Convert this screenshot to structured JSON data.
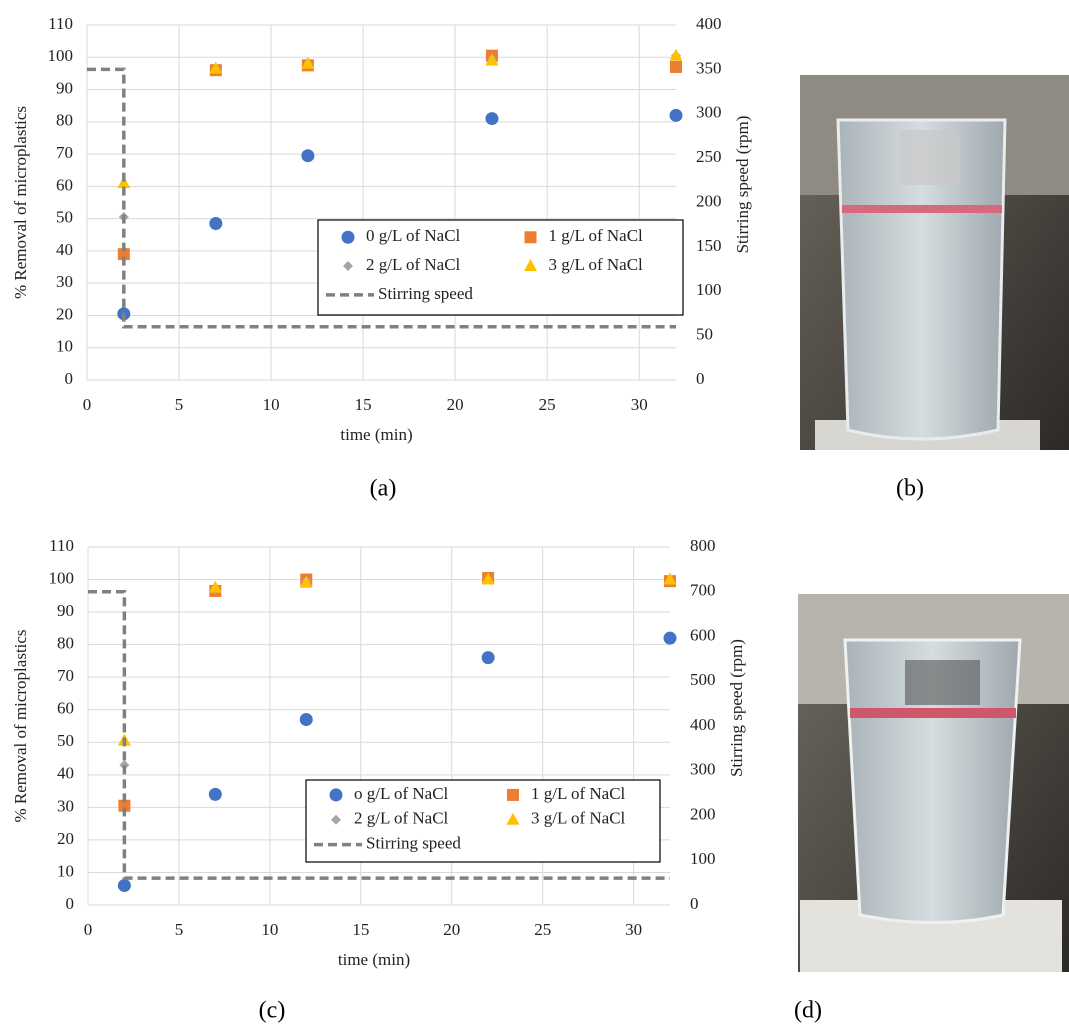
{
  "captions": [
    "(a)",
    "(b)",
    "(c)",
    "(d)"
  ],
  "chart_data": [
    {
      "type": "scatter",
      "xlabel": "time (min)",
      "ylabel": "% Removal of microplastics",
      "y2label": "Stirring speed (rpm)",
      "xlim": [
        0,
        32
      ],
      "xticks": [
        0,
        5,
        10,
        15,
        20,
        25,
        30
      ],
      "ylim": [
        0,
        110
      ],
      "yticks": [
        0,
        10,
        20,
        30,
        40,
        50,
        60,
        70,
        80,
        90,
        100,
        110
      ],
      "y2lim": [
        0,
        400
      ],
      "y2ticks": [
        0,
        50,
        100,
        150,
        200,
        250,
        300,
        350,
        400
      ],
      "grid": true,
      "series": [
        {
          "name": "0 g/L of NaCl",
          "color": "#4472c4",
          "marker": "circle",
          "x": [
            2,
            7,
            12,
            22,
            32
          ],
          "values": [
            20.5,
            48.5,
            69.5,
            81,
            82
          ]
        },
        {
          "name": "1 g/L of NaCl",
          "color": "#ed7d31",
          "marker": "square",
          "x": [
            2,
            7,
            12,
            22,
            32
          ],
          "values": [
            39,
            96,
            97.5,
            100.5,
            97
          ]
        },
        {
          "name": "2 g/L of NaCl",
          "color": "#a5a5a5",
          "marker": "diamond",
          "x": [
            2,
            7,
            12,
            22,
            32
          ],
          "values": [
            50.5,
            96.5,
            98,
            99.5,
            100.5
          ]
        },
        {
          "name": "3 g/L of NaCl",
          "color": "#ffc000",
          "marker": "triangle",
          "x": [
            2,
            7,
            12,
            22,
            32
          ],
          "values": [
            61,
            96.5,
            98,
            99,
            100.5
          ]
        },
        {
          "name": "Stirring speed",
          "color": "#808080",
          "marker": "dashed-line",
          "axis": "y2",
          "x": [
            0,
            2,
            2,
            32
          ],
          "values": [
            350,
            350,
            60,
            60
          ]
        }
      ]
    },
    {
      "type": "scatter",
      "xlabel": "time (min)",
      "ylabel": "% Removal of microplastics",
      "y2label": "Stirring speed (rpm)",
      "xlim": [
        0,
        32
      ],
      "xticks": [
        0,
        5,
        10,
        15,
        20,
        25,
        30
      ],
      "ylim": [
        0,
        110
      ],
      "yticks": [
        0,
        10,
        20,
        30,
        40,
        50,
        60,
        70,
        80,
        90,
        100,
        110
      ],
      "y2lim": [
        0,
        800
      ],
      "y2ticks": [
        0,
        100,
        200,
        300,
        400,
        500,
        600,
        700,
        800
      ],
      "grid": true,
      "series": [
        {
          "name": "o g/L of NaCl",
          "color": "#4472c4",
          "marker": "circle",
          "x": [
            2,
            7,
            12,
            22,
            32
          ],
          "values": [
            6,
            34,
            57,
            76,
            82
          ]
        },
        {
          "name": "1 g/L of NaCl",
          "color": "#ed7d31",
          "marker": "square",
          "x": [
            2,
            7,
            12,
            22,
            32
          ],
          "values": [
            30.5,
            96.5,
            100,
            100.5,
            99.5
          ]
        },
        {
          "name": "2 g/L of NaCl",
          "color": "#a5a5a5",
          "marker": "diamond",
          "x": [
            2,
            7,
            12,
            22,
            32
          ],
          "values": [
            43,
            97,
            99.5,
            100,
            99.5
          ]
        },
        {
          "name": "3 g/L of NaCl",
          "color": "#ffc000",
          "marker": "triangle",
          "x": [
            2,
            7,
            12,
            22,
            32
          ],
          "values": [
            50.5,
            97.5,
            99,
            100,
            100
          ]
        },
        {
          "name": "Stirring speed",
          "color": "#808080",
          "marker": "dashed-line",
          "axis": "y2",
          "x": [
            0,
            2,
            2,
            32
          ],
          "values": [
            700,
            700,
            60,
            60
          ]
        }
      ]
    }
  ]
}
